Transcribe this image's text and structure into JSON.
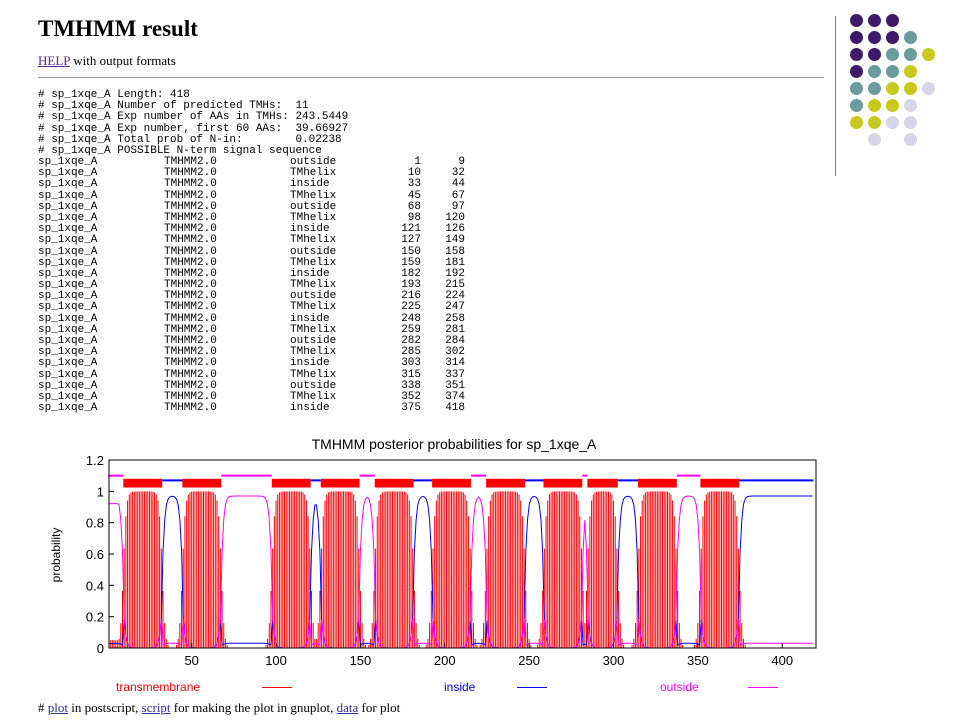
{
  "page": {
    "title": "TMHMM result",
    "help_link": "HELP",
    "help_text": " with output formats"
  },
  "summary": [
    "# sp_1xqe_A Length: 418",
    "# sp_1xqe_A Number of predicted TMHs:  11",
    "# sp_1xqe_A Exp number of AAs in TMHs: 243.5449",
    "# sp_1xqe_A Exp number, first 60 AAs:  39.66927",
    "# sp_1xqe_A Total prob of N-in:        0.02238",
    "# sp_1xqe_A POSSIBLE N-term signal sequence"
  ],
  "table": {
    "rows": [
      [
        "sp_1xqe_A",
        "TMHMM2.0",
        "outside",
        "1",
        "9"
      ],
      [
        "sp_1xqe_A",
        "TMHMM2.0",
        "TMhelix",
        "10",
        "32"
      ],
      [
        "sp_1xqe_A",
        "TMHMM2.0",
        "inside",
        "33",
        "44"
      ],
      [
        "sp_1xqe_A",
        "TMHMM2.0",
        "TMhelix",
        "45",
        "67"
      ],
      [
        "sp_1xqe_A",
        "TMHMM2.0",
        "outside",
        "68",
        "97"
      ],
      [
        "sp_1xqe_A",
        "TMHMM2.0",
        "TMhelix",
        "98",
        "120"
      ],
      [
        "sp_1xqe_A",
        "TMHMM2.0",
        "inside",
        "121",
        "126"
      ],
      [
        "sp_1xqe_A",
        "TMHMM2.0",
        "TMhelix",
        "127",
        "149"
      ],
      [
        "sp_1xqe_A",
        "TMHMM2.0",
        "outside",
        "150",
        "158"
      ],
      [
        "sp_1xqe_A",
        "TMHMM2.0",
        "TMhelix",
        "159",
        "181"
      ],
      [
        "sp_1xqe_A",
        "TMHMM2.0",
        "inside",
        "182",
        "192"
      ],
      [
        "sp_1xqe_A",
        "TMHMM2.0",
        "TMhelix",
        "193",
        "215"
      ],
      [
        "sp_1xqe_A",
        "TMHMM2.0",
        "outside",
        "216",
        "224"
      ],
      [
        "sp_1xqe_A",
        "TMHMM2.0",
        "TMhelix",
        "225",
        "247"
      ],
      [
        "sp_1xqe_A",
        "TMHMM2.0",
        "inside",
        "248",
        "258"
      ],
      [
        "sp_1xqe_A",
        "TMHMM2.0",
        "TMhelix",
        "259",
        "281"
      ],
      [
        "sp_1xqe_A",
        "TMHMM2.0",
        "outside",
        "282",
        "284"
      ],
      [
        "sp_1xqe_A",
        "TMHMM2.0",
        "TMhelix",
        "285",
        "302"
      ],
      [
        "sp_1xqe_A",
        "TMHMM2.0",
        "inside",
        "303",
        "314"
      ],
      [
        "sp_1xqe_A",
        "TMHMM2.0",
        "TMhelix",
        "315",
        "337"
      ],
      [
        "sp_1xqe_A",
        "TMHMM2.0",
        "outside",
        "338",
        "351"
      ],
      [
        "sp_1xqe_A",
        "TMHMM2.0",
        "TMhelix",
        "352",
        "374"
      ],
      [
        "sp_1xqe_A",
        "TMHMM2.0",
        "inside",
        "375",
        "418"
      ]
    ]
  },
  "chart_data": {
    "type": "line",
    "title": "TMHMM posterior probabilities for sp_1xqe_A",
    "xlabel": "",
    "ylabel": "probability",
    "xlim": [
      1,
      420
    ],
    "ylim": [
      0,
      1.2
    ],
    "xticks": [
      "50",
      "100",
      "150",
      "200",
      "250",
      "300",
      "350",
      "400"
    ],
    "yticks": [
      "0",
      "0.2",
      "0.4",
      "0.6",
      "0.8",
      "1",
      "1.2"
    ],
    "grid": false,
    "legend_position": "bottom",
    "series": [
      {
        "name": "transmembrane",
        "color": "#ff0000"
      },
      {
        "name": "inside",
        "color": "#0000ff"
      },
      {
        "name": "outside",
        "color": "#ff00ff"
      }
    ],
    "segments": [
      {
        "type": "outside",
        "start": 1,
        "end": 9
      },
      {
        "type": "TMhelix",
        "start": 10,
        "end": 32
      },
      {
        "type": "inside",
        "start": 33,
        "end": 44
      },
      {
        "type": "TMhelix",
        "start": 45,
        "end": 67
      },
      {
        "type": "outside",
        "start": 68,
        "end": 97
      },
      {
        "type": "TMhelix",
        "start": 98,
        "end": 120
      },
      {
        "type": "inside",
        "start": 121,
        "end": 126
      },
      {
        "type": "TMhelix",
        "start": 127,
        "end": 149
      },
      {
        "type": "outside",
        "start": 150,
        "end": 158
      },
      {
        "type": "TMhelix",
        "start": 159,
        "end": 181
      },
      {
        "type": "inside",
        "start": 182,
        "end": 192
      },
      {
        "type": "TMhelix",
        "start": 193,
        "end": 215
      },
      {
        "type": "outside",
        "start": 216,
        "end": 224
      },
      {
        "type": "TMhelix",
        "start": 225,
        "end": 247
      },
      {
        "type": "inside",
        "start": 248,
        "end": 258
      },
      {
        "type": "TMhelix",
        "start": 259,
        "end": 281
      },
      {
        "type": "outside",
        "start": 282,
        "end": 284
      },
      {
        "type": "TMhelix",
        "start": 285,
        "end": 302
      },
      {
        "type": "inside",
        "start": 303,
        "end": 314
      },
      {
        "type": "TMhelix",
        "start": 315,
        "end": 337
      },
      {
        "type": "outside",
        "start": 338,
        "end": 351
      },
      {
        "type": "TMhelix",
        "start": 352,
        "end": 374
      },
      {
        "type": "inside",
        "start": 375,
        "end": 418
      }
    ]
  },
  "footer": {
    "prefix": "# ",
    "plot_link": "plot",
    "text1": " in postscript, ",
    "script_link": "script",
    "text2": " for making the plot in gnuplot, ",
    "data_link": "data",
    "text3": " for plot"
  },
  "decoration": {
    "dot_colors": [
      "#3f1a6b",
      "#6a9c9c",
      "#c8c81e",
      "#d6d6ea"
    ]
  }
}
